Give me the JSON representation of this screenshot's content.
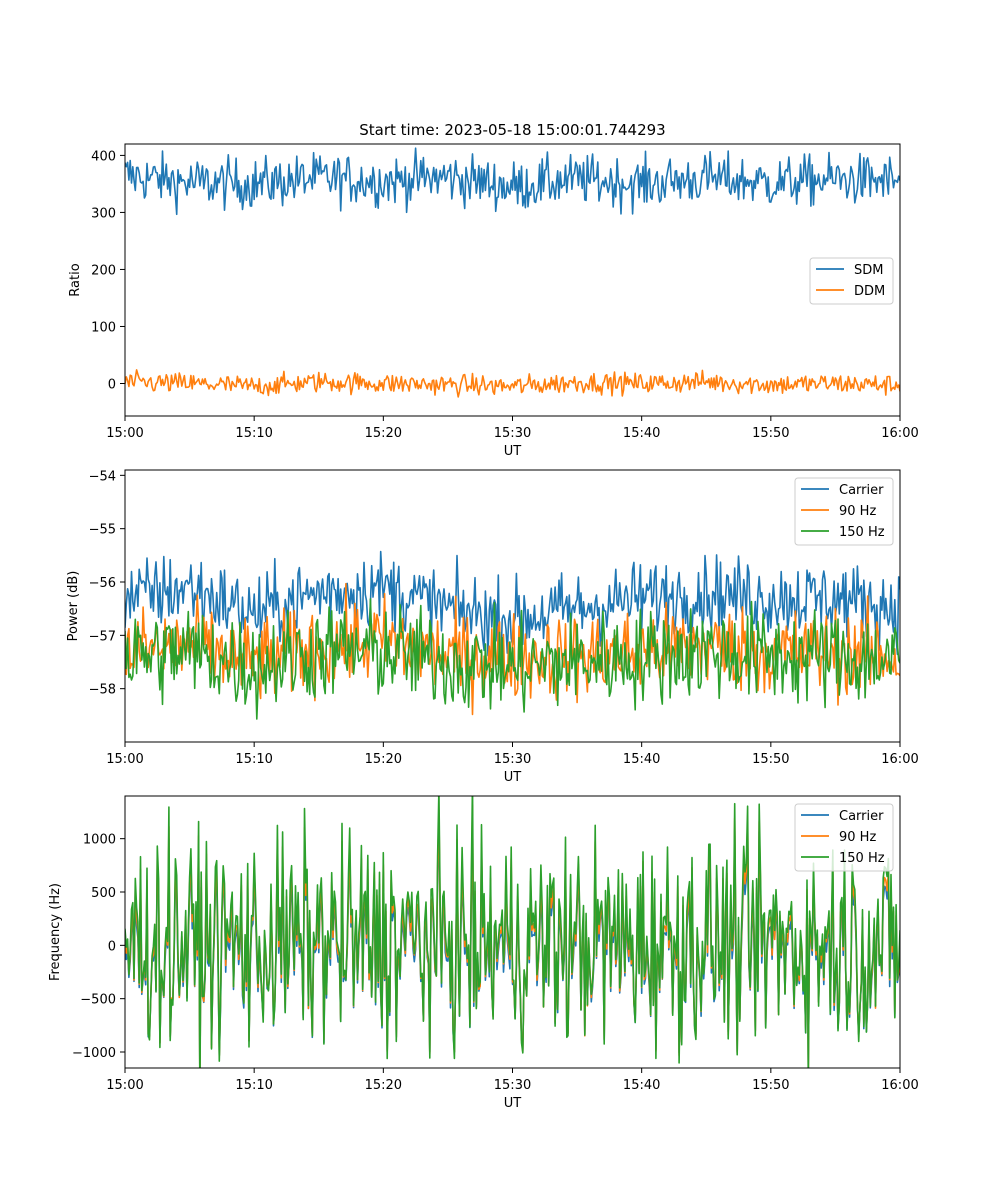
{
  "chart_data": [
    {
      "type": "line",
      "title": "Start time: 2023-05-18 15:00:01.744293",
      "xlabel": "UT",
      "ylabel": "Ratio",
      "x_tick_labels": [
        "15:00",
        "15:10",
        "15:20",
        "15:30",
        "15:40",
        "15:50",
        "16:00"
      ],
      "y_ticks": [
        0,
        100,
        200,
        300,
        400
      ],
      "ylim": [
        -57,
        420
      ],
      "legend_position": "center-right",
      "series": [
        {
          "name": "SDM",
          "color": "#1f77b4",
          "x": [
            "15:00",
            "15:05",
            "15:10",
            "15:15",
            "15:20",
            "15:25",
            "15:30",
            "15:35",
            "15:40",
            "15:45",
            "15:50",
            "15:55",
            "16:00"
          ],
          "y": [
            365,
            352,
            350,
            360,
            355,
            362,
            345,
            358,
            350,
            360,
            352,
            358,
            355
          ],
          "noise": 22
        },
        {
          "name": "DDM",
          "color": "#ff7f0e",
          "x": [
            "15:00",
            "15:05",
            "15:10",
            "15:15",
            "15:20",
            "15:25",
            "15:30",
            "15:35",
            "15:40",
            "15:45",
            "15:50",
            "15:55",
            "16:00"
          ],
          "y": [
            2,
            0,
            -5,
            3,
            0,
            -2,
            -5,
            2,
            0,
            3,
            -2,
            0,
            -3
          ],
          "noise": 9
        }
      ]
    },
    {
      "type": "line",
      "title": "",
      "xlabel": "UT",
      "ylabel": "Power (dB)",
      "x_tick_labels": [
        "15:00",
        "15:10",
        "15:20",
        "15:30",
        "15:40",
        "15:50",
        "16:00"
      ],
      "y_ticks": [
        -58,
        -57,
        -56,
        -55,
        -54
      ],
      "ylim": [
        -59.0,
        -53.9
      ],
      "legend_position": "top-right",
      "series": [
        {
          "name": "Carrier",
          "color": "#1f77b4",
          "x": [
            "15:00",
            "15:05",
            "15:10",
            "15:15",
            "15:20",
            "15:25",
            "15:30",
            "15:35",
            "15:40",
            "15:45",
            "15:50",
            "15:55",
            "16:00"
          ],
          "y": [
            -56.3,
            -56.1,
            -56.6,
            -56.2,
            -56.1,
            -56.5,
            -56.7,
            -56.5,
            -56.3,
            -56.2,
            -56.3,
            -56.3,
            -56.5
          ],
          "noise": 0.35
        },
        {
          "name": "90 Hz",
          "color": "#ff7f0e",
          "x": [
            "15:00",
            "15:05",
            "15:10",
            "15:15",
            "15:20",
            "15:25",
            "15:30",
            "15:35",
            "15:40",
            "15:45",
            "15:50",
            "15:55",
            "16:00"
          ],
          "y": [
            -57.3,
            -57.2,
            -57.5,
            -57.2,
            -57.1,
            -57.4,
            -57.4,
            -57.4,
            -57.3,
            -57.2,
            -57.3,
            -57.3,
            -57.4
          ],
          "noise": 0.4
        },
        {
          "name": "150 Hz",
          "color": "#2ca02c",
          "x": [
            "15:00",
            "15:05",
            "15:10",
            "15:15",
            "15:20",
            "15:25",
            "15:30",
            "15:35",
            "15:40",
            "15:45",
            "15:50",
            "15:55",
            "16:00"
          ],
          "y": [
            -57.4,
            -57.3,
            -57.6,
            -57.3,
            -57.3,
            -57.5,
            -57.6,
            -57.5,
            -57.4,
            -57.3,
            -57.4,
            -57.4,
            -57.5
          ],
          "noise": 0.45
        }
      ]
    },
    {
      "type": "line",
      "title": "",
      "xlabel": "UT",
      "ylabel": "Frequency (Hz)",
      "x_tick_labels": [
        "15:00",
        "15:10",
        "15:20",
        "15:30",
        "15:40",
        "15:50",
        "16:00"
      ],
      "y_ticks": [
        -1000,
        -500,
        0,
        500,
        1000
      ],
      "ylim": [
        -1150,
        1400
      ],
      "legend_position": "top-right",
      "series": [
        {
          "name": "Carrier",
          "color": "#1f77b4",
          "x": [
            "15:00",
            "15:05",
            "15:10",
            "15:15",
            "15:20",
            "15:25",
            "15:30",
            "15:35",
            "15:40",
            "15:45",
            "15:50",
            "15:55",
            "16:00"
          ],
          "y": [
            -50,
            -40,
            -60,
            -40,
            -30,
            -50,
            -60,
            -50,
            -40,
            -30,
            -50,
            -40,
            -60
          ],
          "noise": 420
        },
        {
          "name": "90 Hz",
          "color": "#ff7f0e",
          "x": [
            "15:00",
            "15:05",
            "15:10",
            "15:15",
            "15:20",
            "15:25",
            "15:30",
            "15:35",
            "15:40",
            "15:45",
            "15:50",
            "15:55",
            "16:00"
          ],
          "y": [
            0,
            10,
            -10,
            10,
            20,
            0,
            -10,
            0,
            10,
            20,
            0,
            10,
            -10
          ],
          "noise": 420
        },
        {
          "name": "150 Hz",
          "color": "#2ca02c",
          "x": [
            "15:00",
            "15:05",
            "15:10",
            "15:15",
            "15:20",
            "15:25",
            "15:30",
            "15:35",
            "15:40",
            "15:45",
            "15:50",
            "15:55",
            "16:00"
          ],
          "y": [
            50,
            60,
            40,
            60,
            70,
            50,
            40,
            50,
            60,
            70,
            50,
            60,
            40
          ],
          "noise": 420
        }
      ]
    }
  ]
}
